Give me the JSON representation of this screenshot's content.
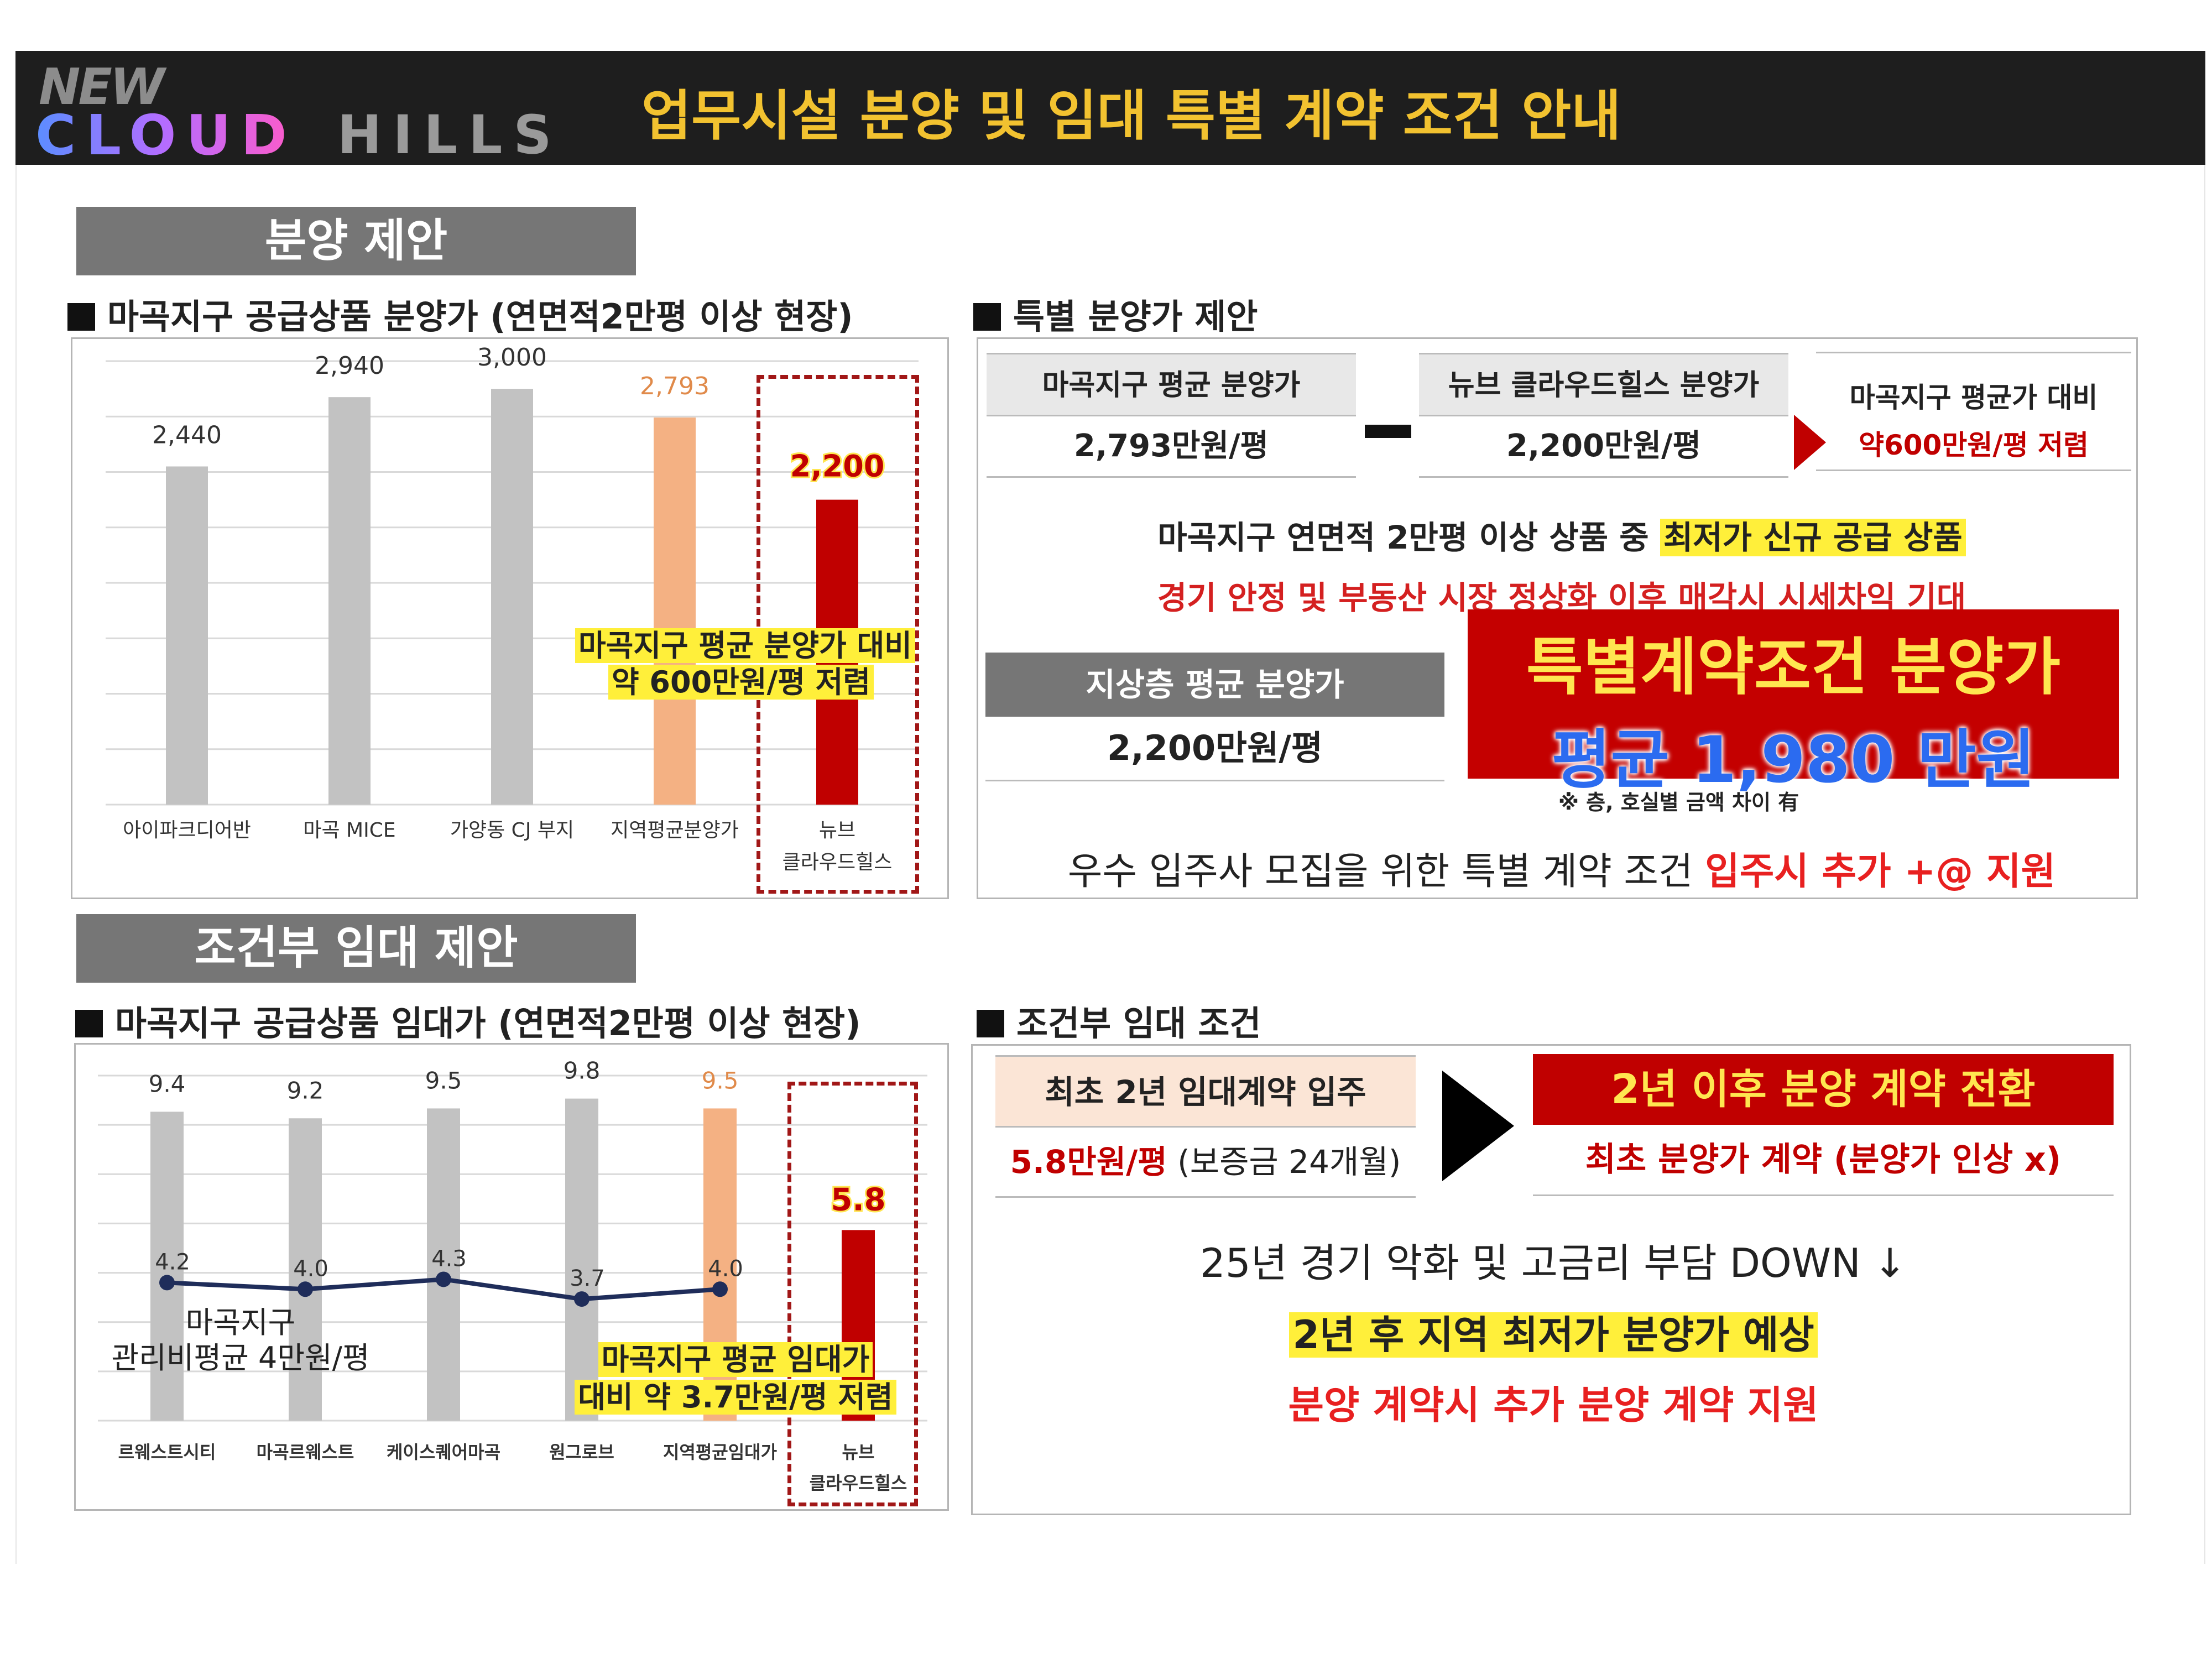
{
  "header": {
    "logo_new": "NEW",
    "logo_cloud": "CLOUD",
    "logo_hills": "HILLS",
    "title": "업무시설 분양 및 임대 특별 계약 조건 안내"
  },
  "sale_section": {
    "label": "분양 제안",
    "chart_title": "마곡지구 공급상품 분양가 (연면적2만평 이상 현장)",
    "annotation_line1": "마곡지구 평균 분양가 대비",
    "annotation_line2": "약 600만원/평 저렴"
  },
  "rent_section": {
    "label": "조건부 임대 제안",
    "chart_title": "마곡지구 공급상품 임대가 (연면적2만평 이상 현장)",
    "mgmt_label_line1": "마곡지구",
    "mgmt_label_line2": "관리비평균 4만원/평",
    "annotation_line1": "마곡지구 평균 임대가",
    "annotation_line2": "대비 약 3.7만원/평 저렴"
  },
  "special_price": {
    "title": "특별 분양가 제안",
    "avg_label": "마곡지구 평균 분양가",
    "avg_value": "2,793만원/평",
    "minus": "−",
    "new_label": "뉴브 클라우드힐스 분양가",
    "new_value": "2,200만원/평",
    "compare_label": "마곡지구 평균가 대비",
    "compare_value": "약600만원/평 저렴",
    "line1_prefix": "마곡지구 연면적 2만평 이상 상품 중 ",
    "line1_highlight": "최저가 신규 공급 상품",
    "line2": "경기 안정 및 부동산 시장 정상화 이후 매각시 시세차익 기대",
    "ground_label": "지상층 평균 분양가",
    "ground_value": "2,200만원/평",
    "red_box_line1": "특별계약조건 분양가",
    "red_box_line2": "평균 1,980 만원",
    "note": "※ 층, 호실별 금액 차이 有",
    "bottom_prefix": "우수 입주사 모집을 위한 특별 계약 조건 ",
    "bottom_highlight": "입주시 추가 +@ 지원"
  },
  "conditional_rent": {
    "title": "조건부 임대 조건",
    "initial_label": "최초 2년 임대계약 입주",
    "initial_value_red": "5.8만원/평",
    "initial_value_rest": " (보증금 24개월)",
    "convert_label": "2년 이후 분양 계약 전환",
    "convert_value": "최초 분양가 계약 (분양가 인상 x)",
    "line1": "25년 경기 악화 및 고금리 부담 DOWN ↓",
    "line2": "2년 후 지역 최저가 분양가 예상",
    "line3": "분양 계약시 추가 분양 계약 지원"
  },
  "colors": {
    "gray_bar": "#c2c2c2",
    "orange_bar": "#f4b183",
    "red_bar": "#c00000",
    "line": "#1f2d5a",
    "header_bg": "#1e1e1e",
    "title_yellow": "#f2c230"
  },
  "chart_data": [
    {
      "type": "bar",
      "title": "마곡지구 공급상품 분양가 (연면적2만평 이상 현장)",
      "categories": [
        "아이파크디어반",
        "마곡 MICE",
        "가양동 CJ 부지",
        "지역평균분양가",
        "뉴브 클라우드힐스"
      ],
      "category_lines": [
        [
          "아이파크디어반"
        ],
        [
          "마곡 MICE"
        ],
        [
          "가양동 CJ 부지"
        ],
        [
          "지역평균분양가"
        ],
        [
          "뉴브",
          "클라우드힐스"
        ]
      ],
      "values": [
        2440,
        2940,
        3000,
        2793,
        2200
      ],
      "value_labels": [
        "2,440",
        "2,940",
        "3,000",
        "2,793",
        "2,200"
      ],
      "ylim": [
        0,
        3200
      ],
      "grid": true,
      "xlabel": "",
      "ylabel": ""
    },
    {
      "type": "bar",
      "title": "마곡지구 공급상품 임대가 (연면적2만평 이상 현장)",
      "categories": [
        "르웨스트시티",
        "마곡르웨스트",
        "케이스퀘어마곡",
        "원그로브",
        "지역평균임대가",
        "뉴브 클라우드힐스"
      ],
      "category_lines": [
        [
          "르웨스트시티"
        ],
        [
          "마곡르웨스트"
        ],
        [
          "케이스퀘어마곡"
        ],
        [
          "원그로브"
        ],
        [
          "지역평균임대가"
        ],
        [
          "뉴브",
          "클라우드힐스"
        ]
      ],
      "series": [
        {
          "name": "임대가",
          "type": "bar",
          "values": [
            9.4,
            9.2,
            9.5,
            9.8,
            9.5,
            5.8
          ],
          "labels": [
            "9.4",
            "9.2",
            "9.5",
            "9.8",
            "9.5",
            "5.8"
          ]
        },
        {
          "name": "관리비",
          "type": "line",
          "values": [
            4.2,
            4.0,
            4.3,
            3.7,
            4.0,
            null
          ],
          "labels": [
            "4.2",
            "4.0",
            "4.3",
            "3.7",
            "4.0",
            ""
          ]
        }
      ],
      "ylim": [
        0,
        10.5
      ],
      "grid": true,
      "xlabel": "",
      "ylabel": ""
    }
  ]
}
